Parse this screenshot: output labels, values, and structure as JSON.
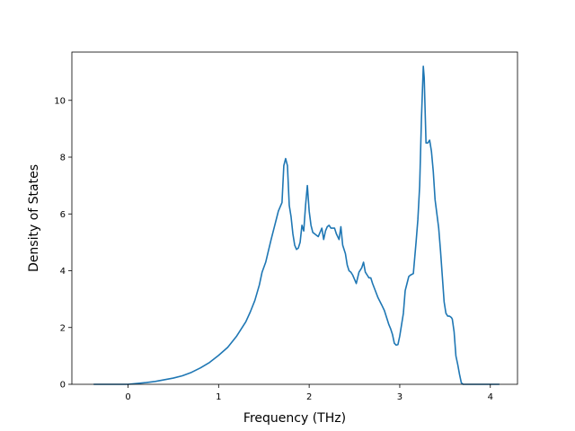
{
  "chart_data": {
    "type": "line",
    "title": "",
    "xlabel": "Frequency (THz)",
    "ylabel": "Density of States",
    "xlim": [
      -0.62,
      4.3
    ],
    "ylim": [
      0,
      11.7
    ],
    "xticks": [
      0,
      1,
      2,
      3,
      4
    ],
    "xtick_labels": [
      "0",
      "1",
      "2",
      "3",
      "4"
    ],
    "yticks": [
      0,
      2,
      4,
      6,
      8,
      10
    ],
    "ytick_labels": [
      "0",
      "2",
      "4",
      "6",
      "8",
      "10"
    ],
    "grid": false,
    "legend": "none",
    "series": [
      {
        "color": "#1f77b4",
        "x": [
          -0.38,
          -0.1,
          0.0,
          0.1,
          0.2,
          0.3,
          0.4,
          0.5,
          0.6,
          0.7,
          0.8,
          0.9,
          1.0,
          1.1,
          1.2,
          1.3,
          1.35,
          1.4,
          1.45,
          1.48,
          1.52,
          1.55,
          1.58,
          1.6,
          1.62,
          1.64,
          1.66,
          1.68,
          1.7,
          1.72,
          1.74,
          1.76,
          1.78,
          1.8,
          1.82,
          1.84,
          1.86,
          1.88,
          1.9,
          1.92,
          1.94,
          1.96,
          1.98,
          2.0,
          2.02,
          2.04,
          2.06,
          2.08,
          2.1,
          2.14,
          2.16,
          2.18,
          2.2,
          2.22,
          2.24,
          2.26,
          2.28,
          2.3,
          2.33,
          2.35,
          2.37,
          2.4,
          2.42,
          2.44,
          2.46,
          2.48,
          2.5,
          2.52,
          2.55,
          2.58,
          2.6,
          2.62,
          2.64,
          2.66,
          2.68,
          2.7,
          2.73,
          2.76,
          2.8,
          2.83,
          2.86,
          2.88,
          2.9,
          2.92,
          2.94,
          2.96,
          2.98,
          3.0,
          3.02,
          3.04,
          3.06,
          3.08,
          3.1,
          3.12,
          3.15,
          3.18,
          3.2,
          3.22,
          3.24,
          3.26,
          3.27,
          3.29,
          3.31,
          3.33,
          3.35,
          3.37,
          3.39,
          3.41,
          3.43,
          3.45,
          3.47,
          3.49,
          3.51,
          3.53,
          3.55,
          3.57,
          3.58,
          3.6,
          3.62,
          3.64,
          3.66,
          3.68,
          3.7,
          3.72,
          4.1
        ],
        "y": [
          0.0,
          0.0,
          0.0,
          0.03,
          0.06,
          0.1,
          0.16,
          0.22,
          0.3,
          0.42,
          0.58,
          0.77,
          1.02,
          1.3,
          1.7,
          2.2,
          2.55,
          2.95,
          3.5,
          3.95,
          4.3,
          4.7,
          5.1,
          5.35,
          5.6,
          5.85,
          6.1,
          6.25,
          6.4,
          7.7,
          7.95,
          7.7,
          6.3,
          5.9,
          5.3,
          4.9,
          4.75,
          4.8,
          5.0,
          5.6,
          5.4,
          6.3,
          7.0,
          6.1,
          5.6,
          5.35,
          5.3,
          5.25,
          5.2,
          5.5,
          5.1,
          5.4,
          5.55,
          5.6,
          5.5,
          5.5,
          5.5,
          5.3,
          5.1,
          5.55,
          4.9,
          4.6,
          4.2,
          4.0,
          3.95,
          3.85,
          3.7,
          3.55,
          3.95,
          4.1,
          4.3,
          3.95,
          3.85,
          3.75,
          3.75,
          3.55,
          3.3,
          3.05,
          2.8,
          2.6,
          2.3,
          2.1,
          1.95,
          1.75,
          1.45,
          1.38,
          1.4,
          1.7,
          2.1,
          2.5,
          3.3,
          3.55,
          3.8,
          3.85,
          3.9,
          5.0,
          5.8,
          7.0,
          9.4,
          11.2,
          10.8,
          8.5,
          8.5,
          8.6,
          8.2,
          7.5,
          6.5,
          6.0,
          5.5,
          4.7,
          3.8,
          2.9,
          2.5,
          2.4,
          2.4,
          2.35,
          2.3,
          1.85,
          1.0,
          0.7,
          0.35,
          0.05,
          0.0,
          0.0,
          0.0
        ]
      }
    ]
  }
}
